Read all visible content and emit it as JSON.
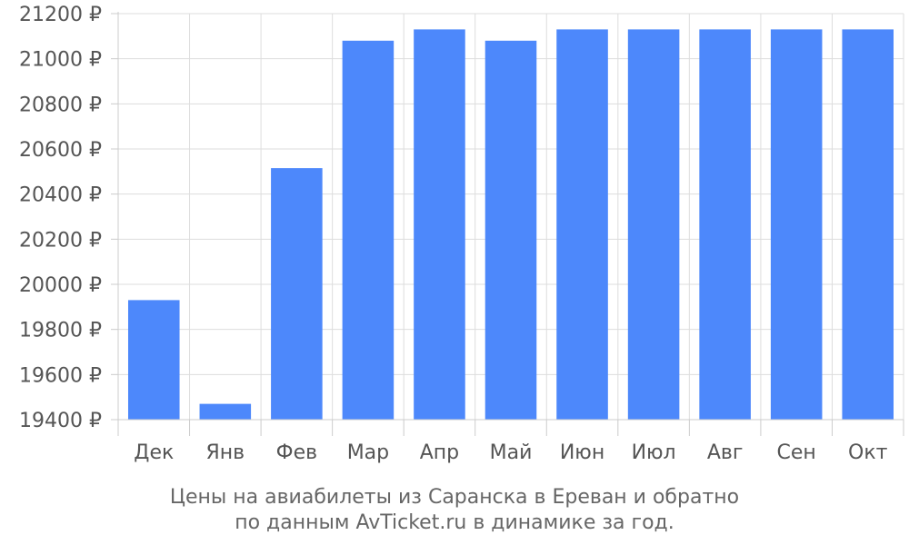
{
  "chart_data": {
    "type": "bar",
    "categories": [
      "Дек",
      "Янв",
      "Фев",
      "Мар",
      "Апр",
      "Май",
      "Июн",
      "Июл",
      "Авг",
      "Сен",
      "Окт"
    ],
    "series": [
      {
        "values": [
          19930,
          19470,
          20515,
          21080,
          21130,
          21080,
          21130,
          21130,
          21130,
          21130,
          21130
        ]
      }
    ],
    "ylim": [
      19400,
      21200
    ],
    "yticks": [
      19400,
      19600,
      19800,
      20000,
      20200,
      20400,
      20600,
      20800,
      21000,
      21200
    ],
    "y_unit": "₽",
    "grid": true,
    "bar_color": "#4d88fb",
    "caption_line1": "Цены на авиабилеты из Саранска в Ереван и обратно",
    "caption_line2": "по данным AvTicket.ru в динамике за год."
  }
}
